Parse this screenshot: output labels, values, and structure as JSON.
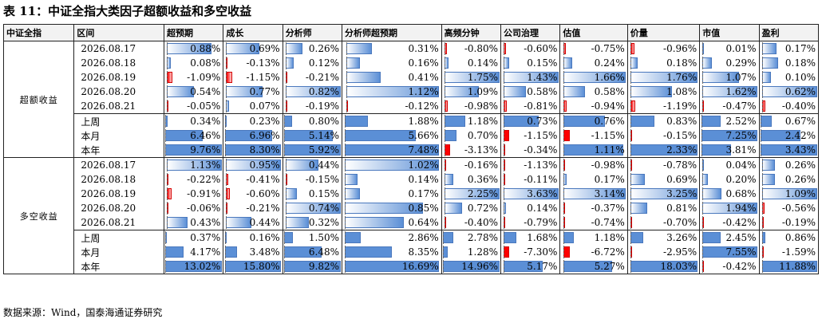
{
  "title": "表 11：中证全指大类因子超额收益和多空收益",
  "source": "数据来源：Wind，国泰海通证券研究",
  "headers": [
    "中证全指",
    "区间",
    "超预期",
    "成长",
    "分析师",
    "分析师超预期",
    "高频分钟",
    "公司治理",
    "估值",
    "价量",
    "市值",
    "盈利"
  ],
  "sections": [
    {
      "label": "超额收益",
      "style": "gradient",
      "rows": [
        {
          "period": "2026.08.17",
          "values": [
            "0.88%",
            "0.69%",
            "0.26%",
            "0.31%",
            "-0.80%",
            "-0.60%",
            "-0.75%",
            "-0.96%",
            "0.01%",
            "0.17%"
          ]
        },
        {
          "period": "2026.08.18",
          "values": [
            "0.08%",
            "-0.13%",
            "0.12%",
            "0.16%",
            "0.14%",
            "0.15%",
            "0.24%",
            "0.18%",
            "0.29%",
            "0.18%"
          ]
        },
        {
          "period": "2026.08.19",
          "values": [
            "-1.09%",
            "-1.15%",
            "-0.21%",
            "0.41%",
            "1.75%",
            "1.43%",
            "1.66%",
            "1.76%",
            "1.07%",
            "0.10%"
          ]
        },
        {
          "period": "2026.08.20",
          "values": [
            "0.54%",
            "0.77%",
            "0.82%",
            "1.12%",
            "1.09%",
            "0.58%",
            "0.58%",
            "1.08%",
            "1.62%",
            "0.62%"
          ]
        },
        {
          "period": "2026.08.21",
          "values": [
            "-0.05%",
            "0.07%",
            "-0.19%",
            "-0.12%",
            "-0.98%",
            "-0.81%",
            "-0.94%",
            "-1.19%",
            "-0.47%",
            "-0.40%"
          ]
        }
      ],
      "summary": [
        {
          "period": "上周",
          "values": [
            "0.34%",
            "0.23%",
            "0.80%",
            "1.88%",
            "1.18%",
            "0.73%",
            "0.76%",
            "0.83%",
            "2.52%",
            "0.67%"
          ]
        },
        {
          "period": "本月",
          "values": [
            "6.46%",
            "6.96%",
            "5.14%",
            "5.66%",
            "0.70%",
            "-1.15%",
            "-1.15%",
            "-0.15%",
            "7.25%",
            "2.42%"
          ]
        },
        {
          "period": "本年",
          "values": [
            "9.76%",
            "8.30%",
            "5.92%",
            "7.48%",
            "-3.13%",
            "-0.34%",
            "1.11%",
            "2.33%",
            "3.81%",
            "3.43%"
          ]
        }
      ]
    },
    {
      "label": "多空收益",
      "style": "gradient",
      "rows": [
        {
          "period": "2026.08.17",
          "values": [
            "1.13%",
            "0.95%",
            "0.44%",
            "1.02%",
            "-0.16%",
            "-1.13%",
            "-0.98%",
            "-0.78%",
            "0.04%",
            "0.26%"
          ]
        },
        {
          "period": "2026.08.18",
          "values": [
            "-0.22%",
            "-0.41%",
            "-0.15%",
            "0.14%",
            "0.36%",
            "-0.11%",
            "0.17%",
            "0.69%",
            "0.20%",
            "0.26%"
          ]
        },
        {
          "period": "2026.08.19",
          "values": [
            "-0.91%",
            "-0.60%",
            "0.15%",
            "0.17%",
            "2.25%",
            "3.63%",
            "3.14%",
            "3.25%",
            "0.68%",
            "1.09%"
          ]
        },
        {
          "period": "2026.08.20",
          "values": [
            "-0.06%",
            "-0.21%",
            "0.74%",
            "0.85%",
            "0.72%",
            "0.14%",
            "-0.37%",
            "0.81%",
            "1.94%",
            "-0.56%"
          ]
        },
        {
          "period": "2026.08.21",
          "values": [
            "0.43%",
            "0.44%",
            "0.32%",
            "0.64%",
            "-0.40%",
            "-0.79%",
            "-0.74%",
            "-0.70%",
            "-0.42%",
            "-0.19%"
          ]
        }
      ],
      "summary": [
        {
          "period": "上周",
          "values": [
            "0.37%",
            "0.16%",
            "1.50%",
            "2.86%",
            "2.78%",
            "1.68%",
            "1.18%",
            "3.26%",
            "2.45%",
            "0.86%"
          ]
        },
        {
          "period": "本月",
          "values": [
            "4.17%",
            "3.48%",
            "6.48%",
            "8.35%",
            "1.28%",
            "-7.30%",
            "-6.72%",
            "-2.95%",
            "7.55%",
            "-1.59%"
          ]
        },
        {
          "period": "本年",
          "values": [
            "13.02%",
            "15.80%",
            "9.82%",
            "16.69%",
            "14.96%",
            "5.17%",
            "5.27%",
            "18.03%",
            "-0.42%",
            "11.88%"
          ]
        }
      ]
    }
  ],
  "colors": {
    "positive": "#5b8fd6",
    "negative": "#ff0000"
  }
}
